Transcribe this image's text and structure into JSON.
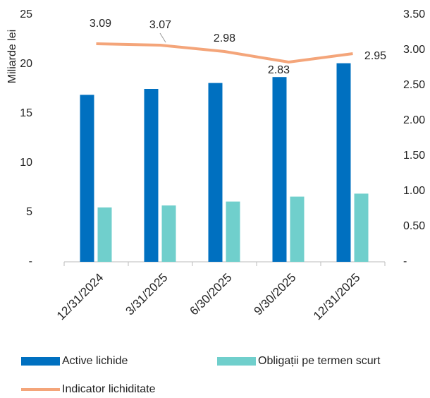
{
  "chart_data": {
    "type": "bar",
    "y_label": "Miliarde lei",
    "categories": [
      "12/31/2024",
      "3/31/2025",
      "6/30/2025",
      "9/30/2025",
      "12/31/2025"
    ],
    "series": [
      {
        "name": "Active lichide",
        "color": "#0070c0",
        "type": "bar",
        "values": [
          16.9,
          17.5,
          18.1,
          18.7,
          20.1
        ]
      },
      {
        "name": "Obligații pe termen scurt",
        "color": "#70cfcc",
        "type": "bar",
        "values": [
          5.5,
          5.7,
          6.1,
          6.6,
          6.9
        ]
      },
      {
        "name": "Indicator lichiditate",
        "color": "#f4a57a",
        "type": "line",
        "axis": "y2",
        "values": [
          3.09,
          3.07,
          2.98,
          2.83,
          2.95
        ]
      }
    ],
    "ylim": [
      0,
      25
    ],
    "yticks": [
      {
        "value": 0,
        "label": "-"
      },
      5,
      10,
      15,
      20,
      25
    ],
    "y2lim": [
      0,
      3.5
    ],
    "y2ticks": [
      {
        "value": 0,
        "label": "-"
      },
      {
        "value": 0.5,
        "label": "0.50"
      },
      {
        "value": 1,
        "label": "1.00"
      },
      {
        "value": 1.5,
        "label": "1.50"
      },
      {
        "value": 2,
        "label": "2.00"
      },
      {
        "value": 2.5,
        "label": "2.50"
      },
      {
        "value": 3,
        "label": "3.00"
      },
      {
        "value": 3.5,
        "label": "3.50"
      }
    ],
    "legend": "bottom"
  }
}
